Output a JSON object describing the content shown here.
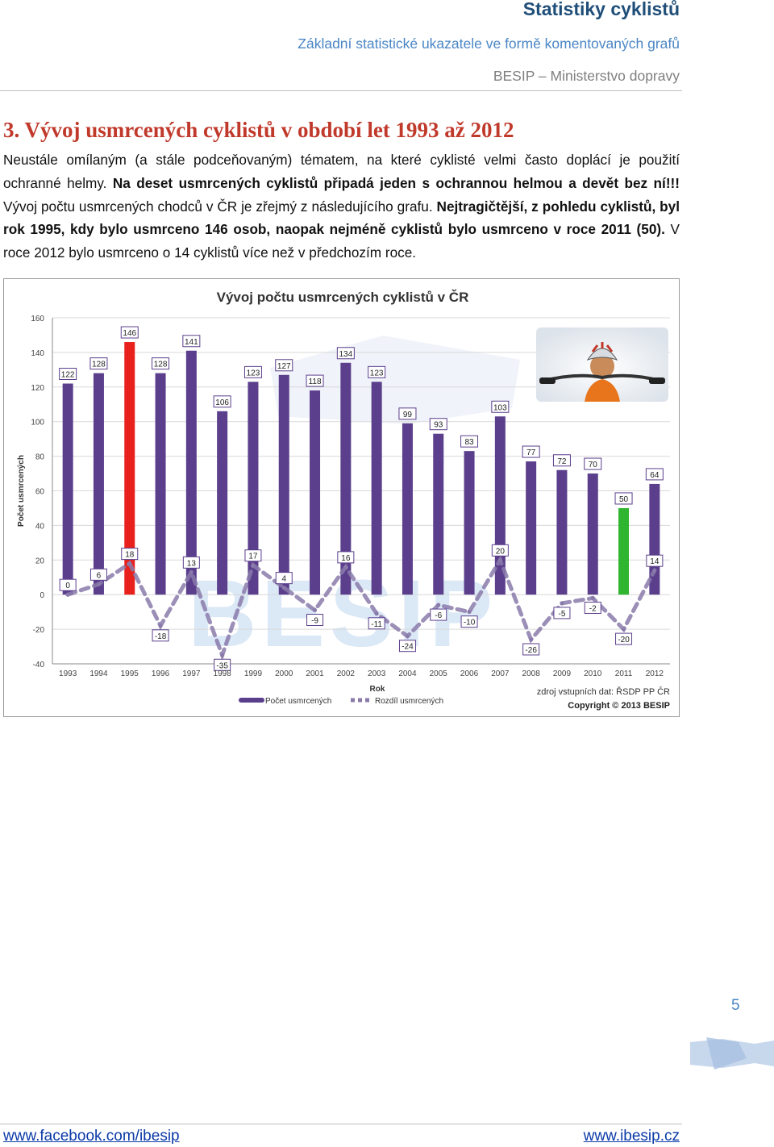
{
  "header": {
    "title": "Statistiky cyklistů",
    "subtitle": "Základní statistické ukazatele ve formě komentovaných grafů",
    "organization": "BESIP – Ministerstvo dopravy"
  },
  "section": {
    "title": "3. Vývoj usmrcených cyklistů v období let 1993 až 2012",
    "p1": "Neustále omílaným (a stále podceňovaným) tématem, na které cyklisté velmi často doplácí je použití ochranné helmy. ",
    "p1_bold": "Na deset usmrcených cyklistů připadá jeden s ochrannou helmou a devět bez ní!!!",
    "p2": " Vývoj počtu usmrcených chodců v ČR je zřejmý z následujícího grafu. ",
    "p2_bold": "Nejtragičtější, z pohledu cyklistů, byl rok 1995, kdy bylo usmrceno 146 osob, naopak nejméně cyklistů bylo usmrceno v roce 2011 (50).",
    "p3": " V roce 2012 bylo usmrceno o 14 cyklistů více než v předchozím roce."
  },
  "chart_data": {
    "type": "bar",
    "title": "Vývoj počtu usmrcených cyklistů v ČR",
    "xlabel": "Rok",
    "ylabel": "Počet usmrcených",
    "ylim": [
      -40,
      160
    ],
    "yticks": [
      "160",
      "140",
      "120",
      "100",
      "80",
      "60",
      "40",
      "20",
      "0",
      "-20",
      "-40"
    ],
    "categories": [
      "1993",
      "1994",
      "1995",
      "1996",
      "1997",
      "1998",
      "1999",
      "2000",
      "2001",
      "2002",
      "2003",
      "2004",
      "2005",
      "2006",
      "2007",
      "2008",
      "2009",
      "2010",
      "2011",
      "2012"
    ],
    "series": [
      {
        "name": "Počet usmrcených",
        "type": "bar",
        "values": [
          122,
          128,
          146,
          128,
          141,
          106,
          123,
          127,
          118,
          134,
          123,
          99,
          93,
          83,
          103,
          77,
          72,
          70,
          50,
          64
        ],
        "color": "#5b3f8c",
        "highlight_max_color": "#e8211c",
        "highlight_min_color": "#2fb52f"
      },
      {
        "name": "Rozdíl usmrcených",
        "type": "line",
        "values": [
          0,
          6,
          18,
          -18,
          13,
          -35,
          17,
          4,
          -9,
          16,
          -11,
          -24,
          -6,
          -10,
          20,
          -26,
          -5,
          -2,
          -20,
          14
        ],
        "color": "#8a7aaa"
      }
    ],
    "legend": "bottom-left",
    "source_note": "zdroj vstupních dat: ŘSDP PP ČR",
    "copyright": "Copyright © 2013 BESIP",
    "watermark": "BESIP",
    "grid": true
  },
  "footer": {
    "page_number": "5",
    "left_link": "www.facebook.com/ibesip",
    "right_link": "www.ibesip.cz"
  }
}
